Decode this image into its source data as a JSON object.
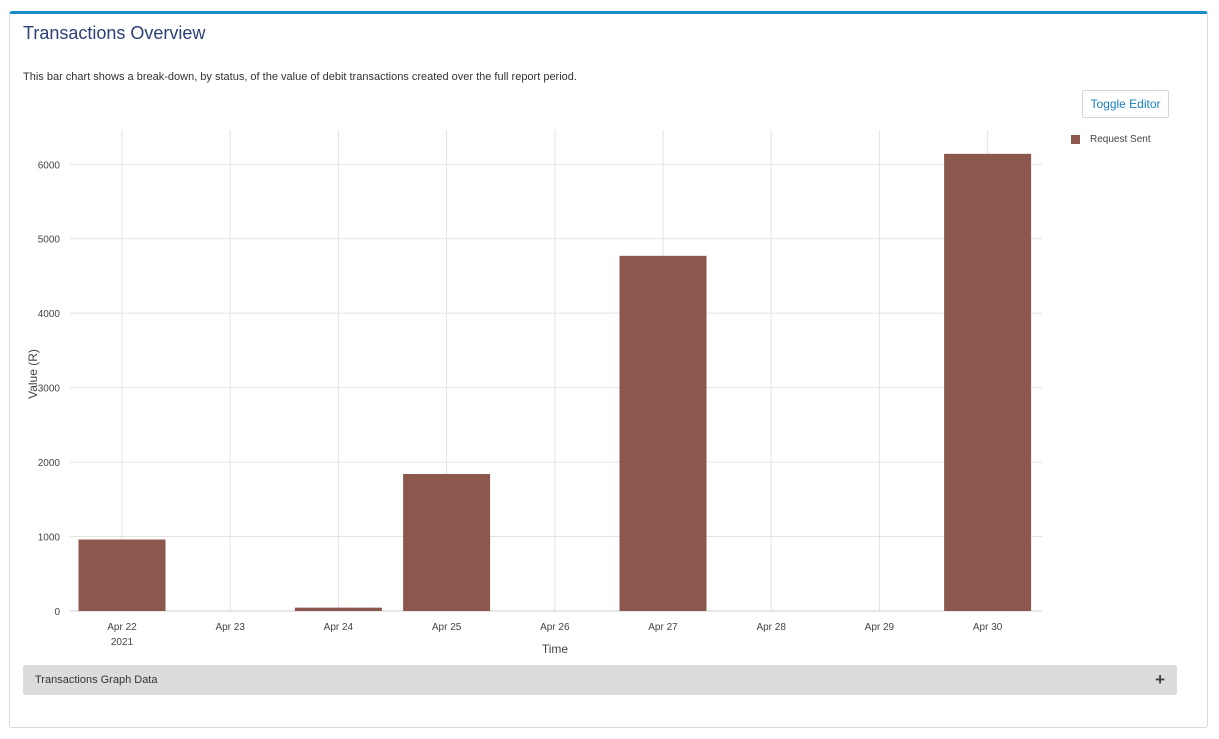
{
  "panel": {
    "title": "Transactions Overview",
    "description": "This bar chart shows a break-down, by status, of the value of debit transactions created over the full report period.",
    "toggle_editor_label": "Toggle Editor",
    "graph_data_label": "Transactions Graph Data",
    "expand_icon": "plus-icon"
  },
  "chart_data": {
    "type": "bar",
    "categories": [
      "Apr 22",
      "Apr 23",
      "Apr 24",
      "Apr 25",
      "Apr 26",
      "Apr 27",
      "Apr 28",
      "Apr 29",
      "Apr 30"
    ],
    "first_tick_sublabel": "2021",
    "series": [
      {
        "name": "Request Sent",
        "color": "#8c574c",
        "values": [
          960,
          0,
          45,
          1840,
          0,
          4770,
          0,
          0,
          6140
        ]
      }
    ],
    "xlabel": "Time",
    "ylabel": "Value (R)",
    "ylim": [
      0,
      6460
    ],
    "yticks": [
      0,
      1000,
      2000,
      3000,
      4000,
      5000,
      6000
    ],
    "grid": true,
    "legend_position": "top-right"
  }
}
